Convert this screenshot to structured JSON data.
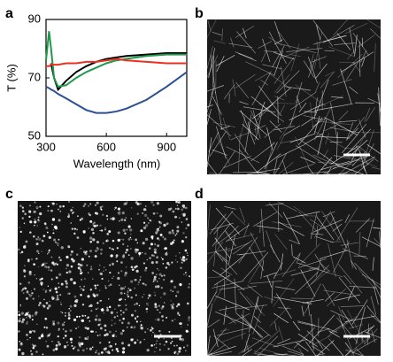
{
  "panel_labels": [
    "a",
    "b",
    "c",
    "d"
  ],
  "chart_data": {
    "type": "line",
    "x_label": "Wavelength (nm)",
    "y_label": "T (%)",
    "x": [
      300,
      315,
      325,
      340,
      360,
      400,
      450,
      500,
      550,
      600,
      650,
      700,
      800,
      900,
      1000
    ],
    "series": [
      {
        "color": "#000000",
        "values": [
          null,
          null,
          75,
          70,
          66,
          69,
          72,
          74,
          75.5,
          76.5,
          77,
          77.5,
          78,
          78.5,
          78.5
        ]
      },
      {
        "color": "#1f9a4a",
        "values": [
          76,
          86,
          80,
          70,
          67,
          67.5,
          70,
          72,
          73.5,
          75,
          76,
          76.5,
          77.5,
          78,
          78
        ]
      },
      {
        "color": "#e8311f",
        "values": [
          74,
          74,
          74.5,
          74.5,
          74.5,
          75,
          75,
          75.5,
          75.5,
          76,
          76.5,
          76,
          75.5,
          75,
          75
        ]
      },
      {
        "color": "#2b4f93",
        "values": [
          67,
          66.5,
          66,
          65.5,
          64.5,
          63,
          61,
          59,
          58,
          58,
          58.5,
          59.5,
          62.5,
          67,
          72
        ]
      }
    ],
    "xlim": [
      300,
      1000
    ],
    "xticks": [
      300,
      600,
      900
    ],
    "ylim": [
      50,
      90
    ],
    "yticks": [
      50,
      70,
      90
    ]
  }
}
